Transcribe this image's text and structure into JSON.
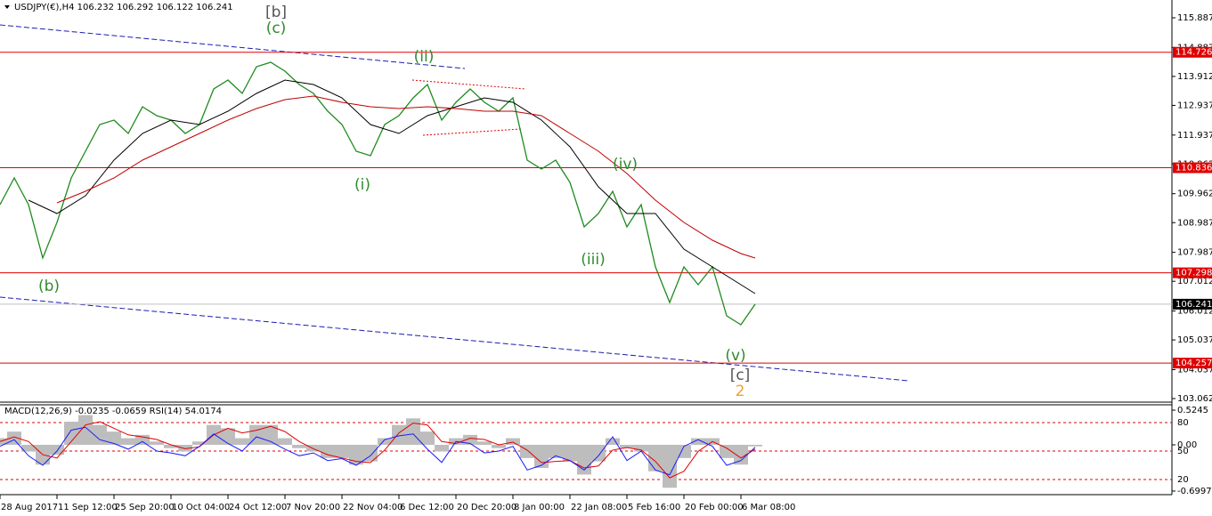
{
  "chart_data": [
    {
      "type": "line",
      "title": "USDJPY(€),H4  106.232 106.292 106.122 106.241",
      "xlim": [
        0,
        82.25
      ],
      "xticks": [
        {
          "value": 0,
          "label": "28 Aug 2017"
        },
        {
          "value": 4,
          "label": "11 Sep 12:00"
        },
        {
          "value": 8,
          "label": "25 Sep 20:00"
        },
        {
          "value": 12,
          "label": "10 Oct 04:00"
        },
        {
          "value": 16,
          "label": "24 Oct 12:00"
        },
        {
          "value": 20,
          "label": "7 Nov 20:00"
        },
        {
          "value": 24,
          "label": "22 Nov 04:00"
        },
        {
          "value": 28,
          "label": "6 Dec 12:00"
        },
        {
          "value": 32,
          "label": "20 Dec 20:00"
        },
        {
          "value": 36,
          "label": "8 Jan 00:00"
        },
        {
          "value": 40,
          "label": "22 Jan 08:00"
        },
        {
          "value": 44,
          "label": "5 Feb 16:00"
        },
        {
          "value": 48,
          "label": "20 Feb 00:00"
        },
        {
          "value": 52,
          "label": "6 Mar 08:00"
        }
      ],
      "ylim": [
        102.942,
        116.486
      ],
      "yticks": [
        115.887,
        114.887,
        113.912,
        112.937,
        111.937,
        110.962,
        109.962,
        108.987,
        107.987,
        107.012,
        106.012,
        105.037,
        104.037,
        103.062
      ],
      "series": [
        {
          "color": "#1f8a1f",
          "x": [
            0,
            1,
            2,
            3,
            4,
            5,
            6,
            7,
            8,
            9,
            10,
            11,
            12,
            13,
            14,
            15,
            16,
            17,
            18,
            19,
            20,
            21,
            22,
            23,
            24,
            25,
            26,
            27,
            28,
            29,
            30,
            31,
            32,
            33,
            34,
            35,
            36,
            37,
            38,
            39,
            40,
            41,
            42,
            43,
            44,
            45,
            46,
            47,
            48,
            49,
            50,
            51,
            52,
            53
          ],
          "values": [
            109.594,
            110.493,
            109.594,
            107.796,
            108.995,
            110.493,
            111.392,
            112.291,
            112.441,
            111.991,
            112.89,
            112.591,
            112.441,
            111.991,
            112.291,
            113.49,
            113.789,
            113.34,
            114.239,
            114.389,
            114.089,
            113.639,
            113.34,
            112.74,
            112.291,
            111.392,
            111.242,
            112.291,
            112.591,
            113.19,
            113.639,
            112.441,
            113.04,
            113.49,
            113.04,
            112.74,
            113.19,
            111.092,
            110.793,
            111.092,
            110.343,
            108.845,
            109.294,
            110.043,
            108.845,
            109.594,
            107.496,
            106.298,
            107.496,
            106.897,
            107.496,
            105.848,
            105.548,
            106.241
          ]
        },
        {
          "color": "#000000",
          "x": [
            2,
            4,
            6,
            8,
            10,
            12,
            14,
            16,
            18,
            20,
            22,
            24,
            26,
            28,
            30,
            32,
            34,
            36,
            38,
            40,
            42,
            44,
            46,
            48,
            50,
            52,
            53
          ],
          "values": [
            109.744,
            109.294,
            109.894,
            111.092,
            111.991,
            112.441,
            112.291,
            112.74,
            113.34,
            113.789,
            113.639,
            113.19,
            112.291,
            111.991,
            112.591,
            112.89,
            113.19,
            113.04,
            112.441,
            111.542,
            110.193,
            109.294,
            109.294,
            108.096,
            107.496,
            106.897,
            106.597
          ]
        },
        {
          "color": "#c00000",
          "x": [
            4,
            6,
            8,
            10,
            12,
            14,
            16,
            18,
            20,
            22,
            24,
            26,
            28,
            30,
            32,
            34,
            36,
            38,
            40,
            42,
            44,
            46,
            48,
            50,
            52,
            53
          ],
          "values": [
            109.654,
            110.043,
            110.493,
            111.092,
            111.542,
            111.991,
            112.441,
            112.83,
            113.13,
            113.25,
            113.04,
            112.89,
            112.83,
            112.89,
            112.83,
            112.74,
            112.74,
            112.591,
            111.991,
            111.392,
            110.643,
            109.744,
            108.995,
            108.395,
            107.946,
            107.796
          ]
        }
      ],
      "levels": [
        114.726,
        110.836,
        107.298,
        104.257
      ],
      "level_color": "#e00000",
      "last_price": 106.241,
      "wave_labels": [
        {
          "text": "[b]",
          "color": "#555555"
        },
        {
          "text": "(c)",
          "color": "#2e8b2e"
        },
        {
          "text": "(ii)",
          "color": "#2e8b2e"
        },
        {
          "text": "(i)",
          "color": "#2e8b2e"
        },
        {
          "text": "(iv)",
          "color": "#2e8b2e"
        },
        {
          "text": "(iii)",
          "color": "#2e8b2e"
        },
        {
          "text": "(b)",
          "color": "#2e8b2e"
        },
        {
          "text": "(v)",
          "color": "#2e8b2e"
        },
        {
          "text": "[c]",
          "color": "#555555"
        },
        {
          "text": "2",
          "color": "#f0a030"
        }
      ]
    },
    {
      "type": "indicator",
      "title": "MACD(12,26,9) -0.0235 -0.0659  RSI(14) 54.0174",
      "x": [
        0,
        1,
        2,
        3,
        4,
        5,
        6,
        7,
        8,
        9,
        10,
        11,
        12,
        13,
        14,
        15,
        16,
        17,
        18,
        19,
        20,
        21,
        22,
        23,
        24,
        25,
        26,
        27,
        28,
        29,
        30,
        31,
        32,
        33,
        34,
        35,
        36,
        37,
        38,
        39,
        40,
        41,
        42,
        43,
        44,
        45,
        46,
        47,
        48,
        49,
        50,
        51,
        52,
        53
      ],
      "ylim": [
        -0.754,
        0.6056
      ],
      "yticks": [
        0.5245,
        {
          "value": 0,
          "label": "0.00"
        },
        -0.6997
      ],
      "y2lim": [
        4.06,
        98.75
      ],
      "y2ticks": [
        80,
        50,
        20
      ],
      "series": [
        {
          "name": "MACD",
          "color": "#bdbdbd",
          "values": [
            0.1,
            0.2,
            -0.1,
            -0.3,
            -0.15,
            0.35,
            0.45,
            0.3,
            0.2,
            0.1,
            0.15,
            0.05,
            -0.05,
            -0.1,
            0.05,
            0.3,
            0.25,
            0.1,
            0.3,
            0.3,
            0.1,
            -0.05,
            -0.1,
            -0.2,
            -0.2,
            -0.3,
            -0.25,
            0.1,
            0.3,
            0.4,
            0.2,
            -0.1,
            0.1,
            0.15,
            0.05,
            -0.05,
            0.1,
            -0.2,
            -0.35,
            -0.2,
            -0.25,
            -0.45,
            -0.25,
            0.1,
            -0.05,
            -0.1,
            -0.4,
            -0.65,
            -0.2,
            0.1,
            0.1,
            -0.2,
            -0.3,
            -0.0235
          ]
        },
        {
          "name": "Signal",
          "color": "#e00000",
          "values": [
            0.05,
            0.12,
            0.05,
            -0.15,
            -0.2,
            0.05,
            0.3,
            0.35,
            0.25,
            0.15,
            0.12,
            0.08,
            0,
            -0.06,
            -0.03,
            0.15,
            0.25,
            0.18,
            0.22,
            0.28,
            0.2,
            0.05,
            -0.06,
            -0.15,
            -0.2,
            -0.25,
            -0.27,
            -0.08,
            0.18,
            0.33,
            0.3,
            0.05,
            0.02,
            0.1,
            0.08,
            0,
            0.04,
            -0.08,
            -0.27,
            -0.25,
            -0.24,
            -0.35,
            -0.32,
            -0.08,
            -0.04,
            -0.08,
            -0.25,
            -0.5,
            -0.4,
            -0.1,
            0.05,
            -0.05,
            -0.2,
            -0.0659
          ]
        },
        {
          "name": "RSI",
          "color": "#1a1aff",
          "axis": "y2",
          "values": [
            55,
            62,
            45,
            35,
            50,
            72,
            75,
            62,
            58,
            52,
            60,
            50,
            48,
            45,
            55,
            68,
            58,
            50,
            65,
            60,
            52,
            45,
            48,
            40,
            42,
            35,
            45,
            62,
            66,
            68,
            52,
            38,
            60,
            58,
            48,
            50,
            55,
            30,
            35,
            45,
            40,
            30,
            45,
            65,
            40,
            50,
            30,
            25,
            55,
            62,
            55,
            35,
            40,
            54.0174
          ]
        }
      ]
    }
  ]
}
